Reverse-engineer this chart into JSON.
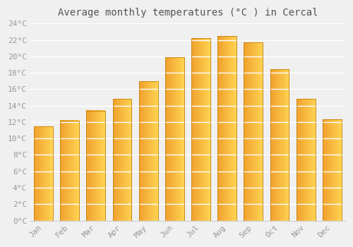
{
  "title": "Average monthly temperatures (°C ) in Cercal",
  "months": [
    "Jan",
    "Feb",
    "Mar",
    "Apr",
    "May",
    "Jun",
    "Jul",
    "Aug",
    "Sep",
    "Oct",
    "Nov",
    "Dec"
  ],
  "temperatures": [
    11.5,
    12.2,
    13.4,
    14.8,
    17.0,
    19.9,
    22.2,
    22.5,
    21.7,
    18.4,
    14.8,
    12.3
  ],
  "bar_color_left": "#F0A030",
  "bar_color_right": "#FFD050",
  "bar_edge_color": "#C8820A",
  "background_color": "#F0F0F0",
  "grid_color": "#FFFFFF",
  "ytick_labels": [
    "0°C",
    "2°C",
    "4°C",
    "6°C",
    "8°C",
    "10°C",
    "12°C",
    "14°C",
    "16°C",
    "18°C",
    "20°C",
    "22°C",
    "24°C"
  ],
  "ytick_values": [
    0,
    2,
    4,
    6,
    8,
    10,
    12,
    14,
    16,
    18,
    20,
    22,
    24
  ],
  "ylim": [
    0,
    24
  ],
  "title_fontsize": 10,
  "tick_fontsize": 8,
  "tick_color": "#999999",
  "title_color": "#555555"
}
